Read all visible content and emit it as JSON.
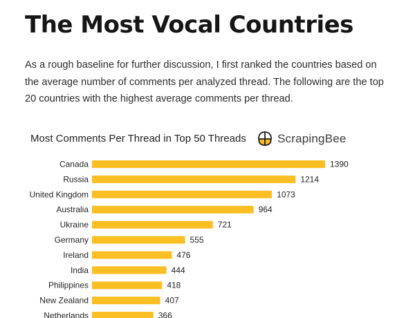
{
  "article": {
    "title": "The Most Vocal Countries",
    "intro": "As a rough baseline for further discussion, I first ranked the countries based on the average number of comments per analyzed thread. The following are the top 20 countries with the highest average comments per thread."
  },
  "brand": {
    "name": "ScrapingBee",
    "icon": "bee-logo-icon",
    "accent": "#fbbf24"
  },
  "chart_data": {
    "type": "bar",
    "orientation": "horizontal",
    "title": "Most Comments Per Thread in Top 50 Threads",
    "categories": [
      "Canada",
      "Russia",
      "United Kingdom",
      "Australia",
      "Ukraine",
      "Germany",
      "Ireland",
      "India",
      "Philippines",
      "New Zealand",
      "Netherlands"
    ],
    "values": [
      1390,
      1214,
      1073,
      964,
      721,
      555,
      476,
      444,
      418,
      407,
      366
    ],
    "xlim": [
      0,
      1390
    ],
    "bar_color": "#fbbf24",
    "grid": false,
    "xlabel": "",
    "ylabel": ""
  }
}
